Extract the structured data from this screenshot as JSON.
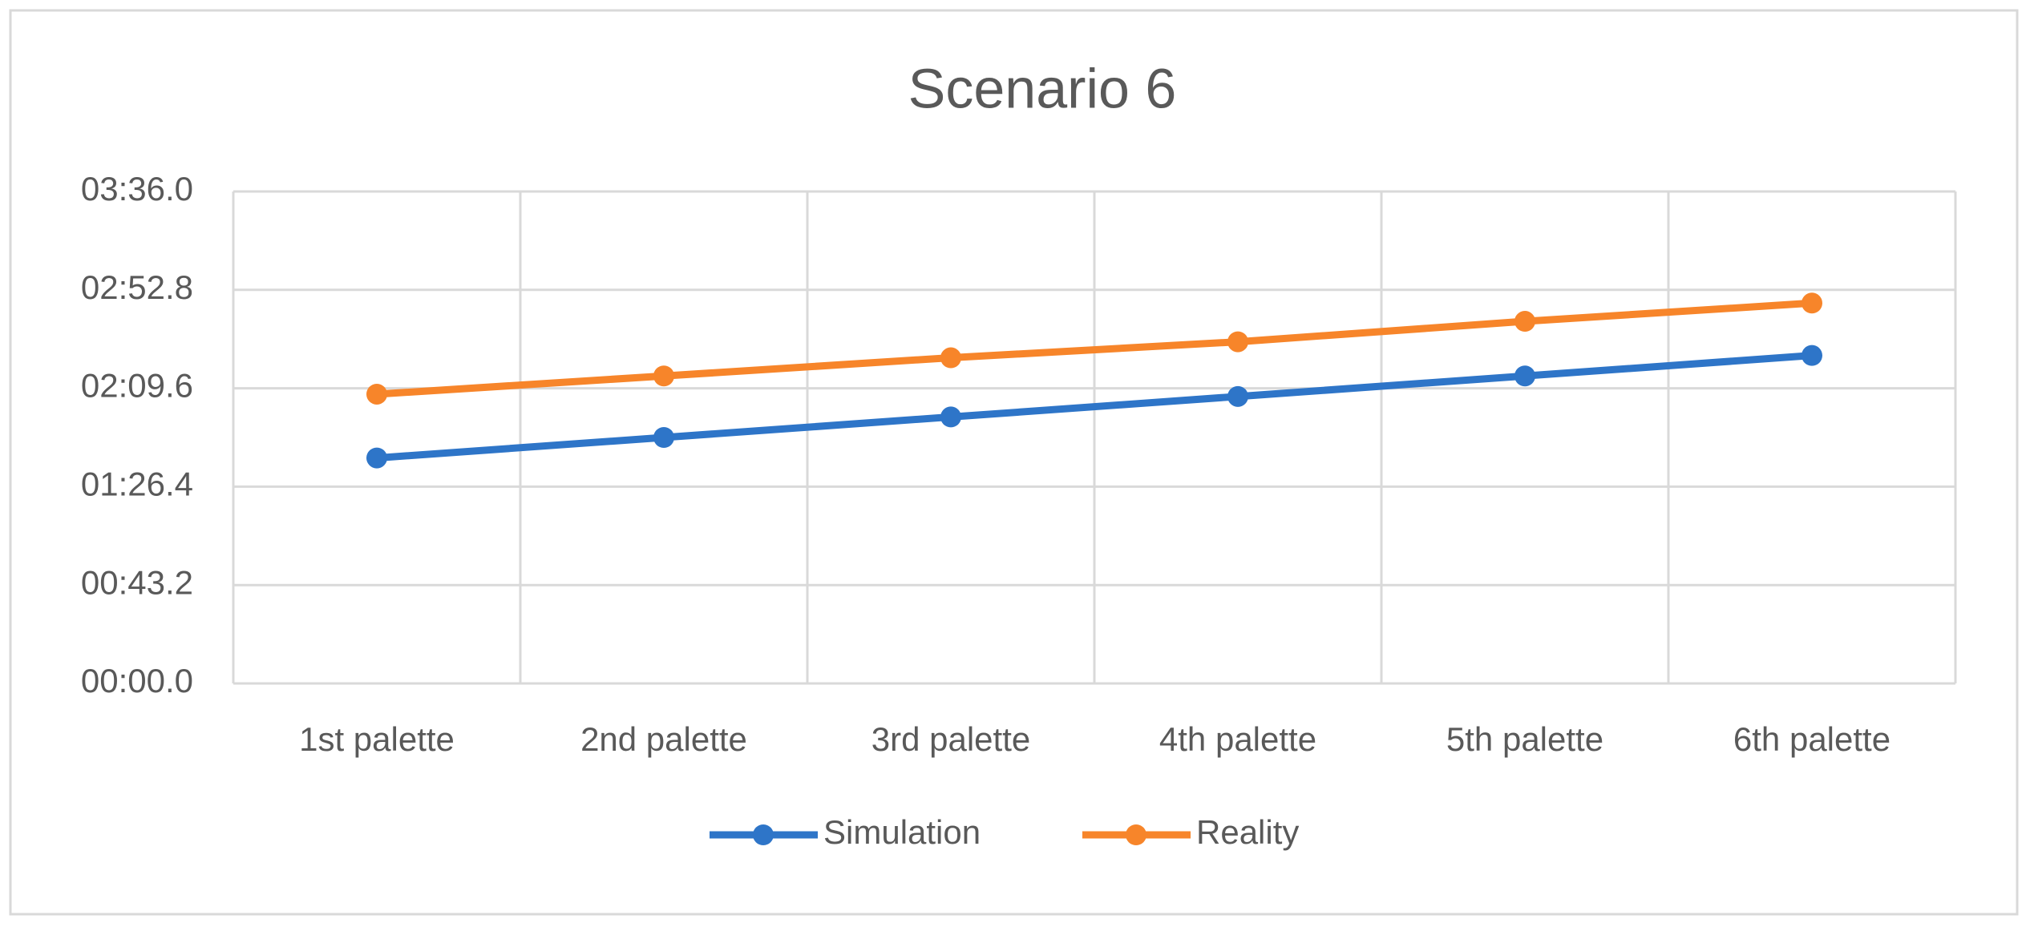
{
  "chart_data": {
    "type": "line",
    "title": "Scenario 6",
    "categories": [
      "1st palette",
      "2nd palette",
      "3rd palette",
      "4th palette",
      "5th palette",
      "6th palette"
    ],
    "series": [
      {
        "name": "Simulation",
        "color": "#2e75c8",
        "values": [
          99,
          108,
          117,
          126,
          135,
          144
        ]
      },
      {
        "name": "Reality",
        "color": "#f7852a",
        "values": [
          127,
          135,
          143,
          150,
          159,
          167
        ]
      }
    ],
    "ylim": [
      0,
      216
    ],
    "yticks": [
      {
        "value": 0,
        "label": "00:00.0"
      },
      {
        "value": 43.2,
        "label": "00:43.2"
      },
      {
        "value": 86.4,
        "label": "01:26.4"
      },
      {
        "value": 129.6,
        "label": "02:09.6"
      },
      {
        "value": 172.8,
        "label": "02:52.8"
      },
      {
        "value": 216,
        "label": "03:36.0"
      }
    ],
    "grid": true,
    "legend": "bottom"
  }
}
